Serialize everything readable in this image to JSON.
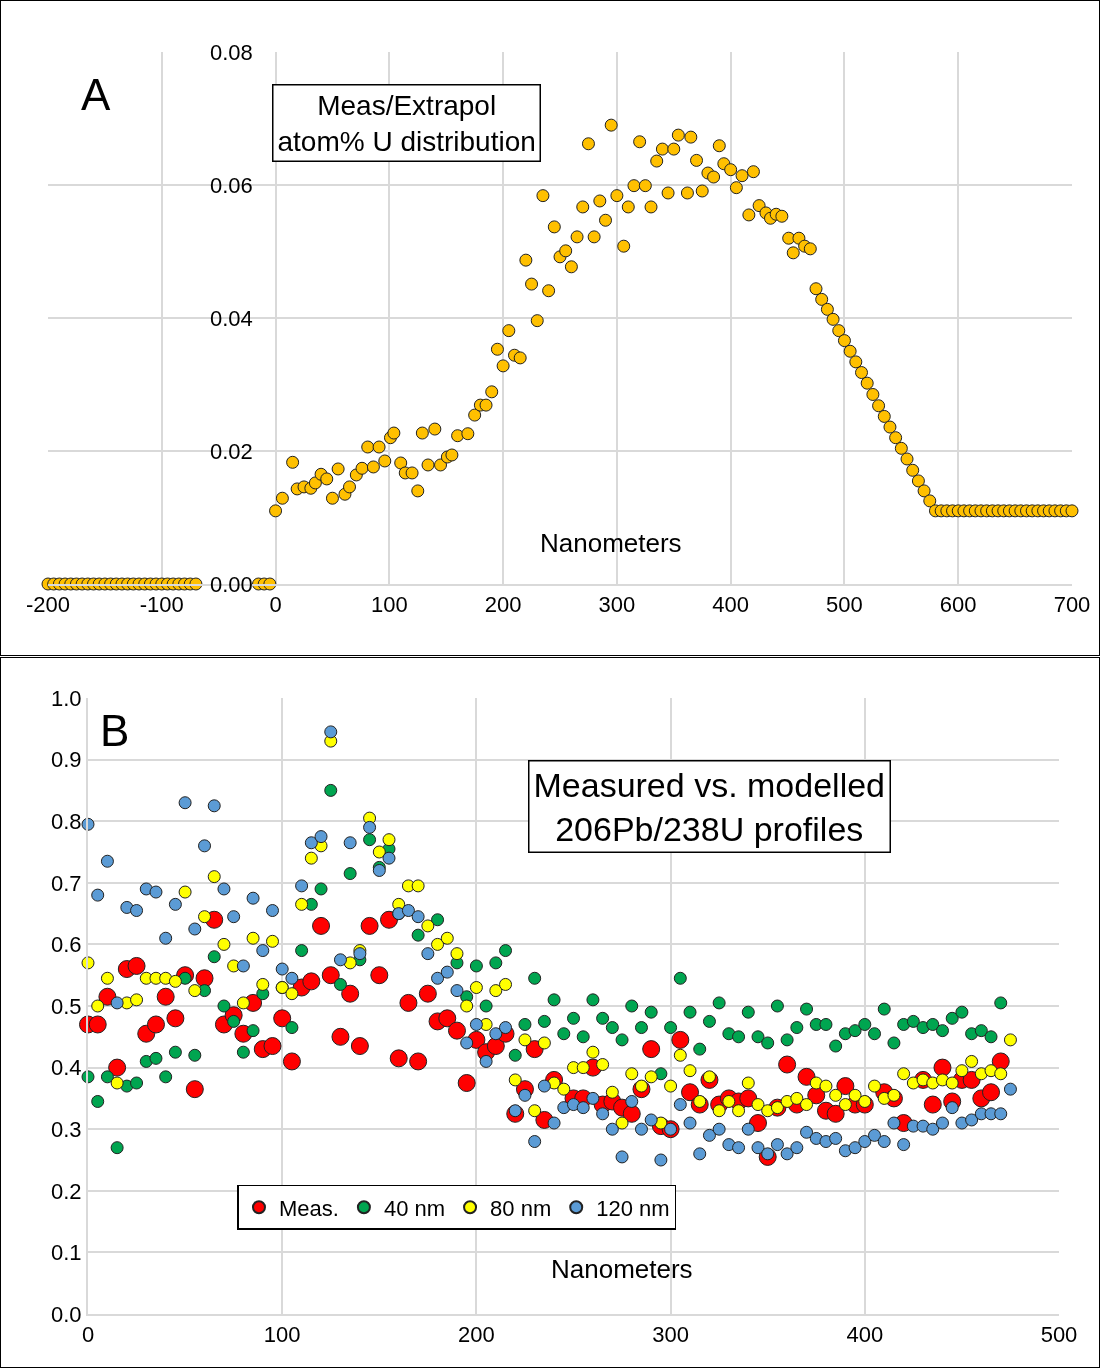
{
  "chart_data": [
    {
      "type": "scatter",
      "title": "Meas/Extrapol\natom% U distribution",
      "xlabel": "Nanometers",
      "annotations": [
        "A"
      ],
      "color": "#ffc000",
      "marker": "circle",
      "grid": true,
      "xlim": [
        -200,
        700
      ],
      "xticks": [
        -200,
        -100,
        0,
        100,
        200,
        300,
        400,
        500,
        600,
        700
      ],
      "ylim": [
        0,
        0.08
      ],
      "yticks": [
        {
          "value": 0,
          "label": "0.00"
        },
        {
          "value": 0.02,
          "label": "0.02"
        },
        {
          "value": 0.04,
          "label": "0.04"
        },
        {
          "value": 0.06,
          "label": "0.06"
        },
        {
          "value": 0.08,
          "label": "0.08"
        }
      ],
      "x": [
        -200,
        -195,
        -190,
        -185,
        -180,
        -175,
        -170,
        -165,
        -160,
        -155,
        -150,
        -145,
        -140,
        -135,
        -130,
        -125,
        -120,
        -115,
        -110,
        -105,
        -100,
        -95,
        -90,
        -85,
        -80,
        -75,
        -70,
        -15,
        -10,
        -5,
        0,
        6,
        15,
        19,
        25,
        31,
        35,
        40,
        45,
        50,
        55,
        61,
        65,
        71,
        76,
        81,
        86,
        91,
        96,
        101,
        104,
        110,
        114,
        120,
        125,
        129,
        134,
        140,
        145,
        151,
        155,
        160,
        169,
        175,
        180,
        185,
        190,
        195,
        200,
        205,
        210,
        215,
        220,
        225,
        230,
        235,
        240,
        245,
        250,
        255,
        260,
        265,
        270,
        275,
        280,
        285,
        290,
        295,
        300,
        306,
        310,
        315,
        320,
        325,
        330,
        335,
        340,
        345,
        350,
        354,
        362,
        365,
        370,
        375,
        380,
        385,
        390,
        394,
        400,
        405,
        410,
        416,
        420,
        425,
        431,
        435,
        440,
        445,
        451,
        455,
        460,
        465,
        470,
        475,
        480,
        485,
        490,
        495,
        500,
        505,
        510,
        515,
        520,
        525,
        530,
        535,
        540,
        545,
        550,
        555,
        560,
        565,
        570,
        575,
        580,
        585,
        590,
        595,
        600,
        605,
        610,
        615,
        620,
        625,
        630,
        635,
        640,
        645,
        650,
        655,
        660,
        665,
        670,
        675,
        680,
        685,
        690,
        695,
        700
      ],
      "values": [
        0,
        0,
        0,
        0,
        0,
        0,
        0,
        0,
        0,
        0,
        0,
        0,
        0,
        0,
        0,
        0,
        0,
        0,
        0,
        0,
        0,
        0,
        0,
        0,
        0,
        0,
        0,
        0,
        0,
        0,
        0.011,
        0.0129,
        0.0183,
        0.0143,
        0.0146,
        0.0144,
        0.0152,
        0.0165,
        0.0158,
        0.0129,
        0.0173,
        0.0135,
        0.0146,
        0.0164,
        0.0174,
        0.0206,
        0.0176,
        0.0206,
        0.0185,
        0.022,
        0.0227,
        0.0182,
        0.0167,
        0.0167,
        0.014,
        0.0227,
        0.0179,
        0.0233,
        0.0179,
        0.0191,
        0.0194,
        0.0223,
        0.0226,
        0.0254,
        0.0269,
        0.0269,
        0.0289,
        0.0353,
        0.0328,
        0.0381,
        0.0344,
        0.034,
        0.0487,
        0.0451,
        0.0396,
        0.0584,
        0.0441,
        0.0537,
        0.0492,
        0.0501,
        0.0477,
        0.0522,
        0.0567,
        0.0662,
        0.0522,
        0.0576,
        0.0547,
        0.069,
        0.0584,
        0.0508,
        0.0567,
        0.0599,
        0.0665,
        0.0599,
        0.0567,
        0.0636,
        0.0654,
        0.0588,
        0.0654,
        0.0675,
        0.0588,
        0.0672,
        0.0637,
        0.0591,
        0.0618,
        0.0612,
        0.0659,
        0.0632,
        0.0623,
        0.0596,
        0.0614,
        0.0555,
        0.062,
        0.0569,
        0.0558,
        0.055,
        0.0556,
        0.0553,
        0.052,
        0.0498,
        0.052,
        0.0508,
        0.0504,
        0.0444,
        0.0428,
        0.0413,
        0.0398,
        0.0381,
        0.0366,
        0.035,
        0.0334,
        0.0318,
        0.0302,
        0.0285,
        0.0268,
        0.0252,
        0.0236,
        0.022,
        0.0204,
        0.0188,
        0.0171,
        0.0155,
        0.014,
        0.0125,
        0.011,
        0.011,
        0.011,
        0.011,
        0.011,
        0.011,
        0.011,
        0.011,
        0.011,
        0.011,
        0.011,
        0.011,
        0.011,
        0.011,
        0.011,
        0.011,
        0.011,
        0.011,
        0.011,
        0.011,
        0.011,
        0.011,
        0.011,
        0.011,
        0.011
      ]
    },
    {
      "type": "scatter",
      "title": "Measured vs. modelled\n206Pb/238U profiles",
      "xlabel": "Nanometers",
      "annotations": [
        "B"
      ],
      "marker": "circle",
      "grid": true,
      "legend": "bottom",
      "xlim": [
        0,
        500
      ],
      "xticks": [
        0,
        100,
        200,
        300,
        400,
        500
      ],
      "ylim": [
        0,
        1
      ],
      "yticks": [
        {
          "value": 0,
          "label": "0.0"
        },
        {
          "value": 0.1,
          "label": "0.1"
        },
        {
          "value": 0.2,
          "label": "0.2"
        },
        {
          "value": 0.3,
          "label": "0.3"
        },
        {
          "value": 0.4,
          "label": "0.4"
        },
        {
          "value": 0.5,
          "label": "0.5"
        },
        {
          "value": 0.6,
          "label": "0.6"
        },
        {
          "value": 0.7,
          "label": "0.7"
        },
        {
          "value": 0.8,
          "label": "0.8"
        },
        {
          "value": 0.9,
          "label": "0.9"
        },
        {
          "value": 1,
          "label": "1.0"
        }
      ],
      "series": [
        {
          "name": "Meas.",
          "color": "#ff0000",
          "x": [
            0,
            5,
            10,
            15,
            20,
            25,
            30,
            35,
            40,
            45,
            50,
            55,
            60,
            65,
            70,
            75,
            80,
            85,
            90,
            95,
            100,
            105,
            110,
            115,
            120,
            125,
            130,
            135,
            140,
            145,
            150,
            155,
            160,
            165,
            170,
            175,
            180,
            185,
            190,
            195,
            200,
            205,
            210,
            215,
            220,
            225,
            230,
            235,
            240,
            245,
            250,
            255,
            260,
            265,
            270,
            275,
            280,
            285,
            290,
            295,
            300,
            305,
            310,
            315,
            320,
            325,
            330,
            335,
            340,
            345,
            350,
            355,
            360,
            365,
            370,
            375,
            380,
            385,
            390,
            395,
            400,
            405,
            410,
            415,
            420,
            425,
            430,
            435,
            440,
            445,
            450,
            455,
            460,
            465,
            470
          ],
          "values": [
            0.47,
            0.47,
            0.515,
            0.4,
            0.56,
            0.565,
            0.455,
            0.47,
            0.515,
            0.48,
            0.55,
            0.365,
            0.545,
            0.64,
            0.47,
            0.485,
            0.455,
            0.505,
            0.43,
            0.435,
            0.48,
            0.41,
            0.53,
            0.54,
            0.63,
            0.55,
            0.45,
            0.52,
            0.435,
            0.63,
            0.55,
            0.64,
            0.415,
            0.505,
            0.41,
            0.52,
            0.475,
            0.48,
            0.46,
            0.375,
            0.445,
            0.425,
            0.435,
            0.455,
            0.325,
            0.365,
            0.43,
            0.315,
            0.38,
            null,
            0.35,
            0.35,
            0.4,
            0.34,
            0.345,
            0.335,
            0.325,
            0.365,
            0.43,
            0.305,
            0.3,
            0.445,
            0.36,
            0.34,
            0.38,
            0.34,
            0.35,
            0.345,
            0.35,
            0.31,
            0.255,
            0.335,
            0.405,
            0.34,
            0.385,
            0.355,
            0.33,
            0.325,
            0.37,
            0.34,
            0.34,
            null,
            0.36,
            0.35,
            0.31,
            null,
            0.38,
            0.34,
            0.4,
            0.345,
            0.38,
            0.38,
            0.35,
            0.36,
            0.41
          ]
        },
        {
          "name": "40 nm",
          "color": "#00a550",
          "x": [
            0,
            5,
            10,
            15,
            20,
            25,
            30,
            35,
            40,
            45,
            50,
            55,
            60,
            65,
            70,
            75,
            80,
            85,
            90,
            100,
            105,
            110,
            115,
            120,
            125,
            130,
            135,
            140,
            145,
            150,
            155,
            160,
            170,
            180,
            185,
            190,
            195,
            200,
            205,
            210,
            215,
            220,
            225,
            230,
            235,
            240,
            245,
            250,
            255,
            260,
            265,
            270,
            275,
            280,
            285,
            290,
            295,
            300,
            305,
            310,
            315,
            320,
            325,
            330,
            335,
            340,
            345,
            350,
            355,
            360,
            365,
            370,
            375,
            380,
            385,
            390,
            395,
            400,
            405,
            410,
            415,
            420,
            425,
            430,
            435,
            440,
            445,
            450,
            455,
            460,
            465,
            470
          ],
          "values": [
            0.385,
            0.345,
            0.385,
            0.27,
            0.37,
            0.375,
            0.41,
            0.415,
            0.385,
            0.425,
            0.545,
            0.42,
            0.525,
            0.58,
            0.5,
            0.475,
            0.425,
            0.46,
            0.52,
            0.53,
            0.465,
            0.59,
            0.665,
            0.69,
            0.85,
            0.535,
            0.715,
            0.575,
            0.77,
            0.725,
            0.755,
            0.65,
            0.615,
            0.64,
            null,
            0.57,
            0.515,
            0.565,
            0.5,
            0.57,
            0.59,
            0.42,
            0.47,
            0.545,
            0.475,
            0.51,
            0.455,
            0.48,
            0.45,
            0.51,
            0.48,
            0.465,
            0.445,
            0.5,
            0.465,
            0.49,
            0.39,
            0.465,
            0.545,
            0.49,
            0.43,
            0.475,
            0.505,
            0.455,
            0.45,
            0.49,
            0.45,
            0.44,
            0.5,
            0.445,
            0.465,
            0.495,
            0.47,
            0.47,
            0.435,
            0.455,
            0.46,
            0.47,
            0.455,
            0.495,
            0.44,
            0.47,
            0.475,
            0.465,
            0.47,
            0.46,
            0.48,
            0.49,
            0.455,
            0.46,
            0.45,
            0.505
          ]
        },
        {
          "name": "80 nm",
          "color": "#ffff00",
          "x": [
            0,
            5,
            10,
            15,
            20,
            25,
            30,
            35,
            40,
            45,
            50,
            55,
            60,
            65,
            70,
            75,
            80,
            85,
            90,
            95,
            100,
            105,
            110,
            115,
            120,
            125,
            135,
            140,
            145,
            150,
            155,
            160,
            165,
            170,
            175,
            180,
            185,
            190,
            195,
            200,
            205,
            210,
            215,
            220,
            225,
            230,
            235,
            240,
            245,
            250,
            255,
            260,
            265,
            270,
            275,
            280,
            285,
            290,
            295,
            300,
            305,
            310,
            315,
            320,
            325,
            330,
            335,
            340,
            345,
            350,
            355,
            360,
            365,
            370,
            375,
            380,
            385,
            390,
            395,
            400,
            405,
            410,
            415,
            420,
            425,
            430,
            435,
            440,
            445,
            450,
            455,
            460,
            465,
            470,
            475
          ],
          "values": [
            0.57,
            0.5,
            0.545,
            0.375,
            0.505,
            0.51,
            0.545,
            0.545,
            0.545,
            0.54,
            0.685,
            0.525,
            0.645,
            0.71,
            0.6,
            0.565,
            0.505,
            0.61,
            0.535,
            0.605,
            0.53,
            0.52,
            0.665,
            0.74,
            0.76,
            0.93,
            0.57,
            0.59,
            0.805,
            0.75,
            0.77,
            0.665,
            0.695,
            0.695,
            0.63,
            0.6,
            0.61,
            0.585,
            0.5,
            0.53,
            0.47,
            0.525,
            0.535,
            0.38,
            0.445,
            0.33,
            0.44,
            0.375,
            0.365,
            0.4,
            0.4,
            0.425,
            0.405,
            0.36,
            0.31,
            0.39,
            0.37,
            0.385,
            0.31,
            0.37,
            0.42,
            0.395,
            0.345,
            0.385,
            0.33,
            0.345,
            0.33,
            0.375,
            0.34,
            0.33,
            0.335,
            0.345,
            0.35,
            0.34,
            0.375,
            0.37,
            0.355,
            0.34,
            0.355,
            0.345,
            0.37,
            0.35,
            0.355,
            0.39,
            0.375,
            0.38,
            0.375,
            0.38,
            0.375,
            0.395,
            0.41,
            0.39,
            0.395,
            0.39,
            0.445
          ]
        },
        {
          "name": "120 nm",
          "color": "#5b9bd5",
          "x": [
            0,
            5,
            10,
            15,
            20,
            25,
            30,
            35,
            40,
            45,
            50,
            55,
            60,
            65,
            70,
            75,
            80,
            85,
            90,
            95,
            100,
            105,
            110,
            115,
            120,
            125,
            130,
            135,
            140,
            145,
            150,
            155,
            160,
            165,
            170,
            175,
            180,
            185,
            190,
            195,
            200,
            205,
            210,
            215,
            220,
            225,
            230,
            235,
            240,
            245,
            250,
            255,
            260,
            265,
            270,
            275,
            280,
            285,
            290,
            295,
            300,
            305,
            310,
            315,
            320,
            325,
            330,
            335,
            340,
            345,
            350,
            355,
            360,
            365,
            370,
            375,
            380,
            385,
            390,
            395,
            400,
            405,
            410,
            415,
            420,
            425,
            430,
            435,
            440,
            445,
            450,
            455,
            460,
            465,
            470,
            475
          ],
          "values": [
            0.795,
            0.68,
            0.735,
            0.505,
            0.66,
            0.655,
            0.69,
            0.685,
            0.61,
            0.665,
            0.83,
            0.625,
            0.76,
            0.825,
            0.69,
            0.645,
            0.565,
            0.675,
            0.59,
            0.655,
            0.56,
            0.545,
            0.695,
            0.765,
            0.775,
            0.945,
            0.575,
            0.765,
            0.585,
            0.79,
            0.72,
            0.74,
            0.65,
            0.655,
            0.645,
            0.585,
            0.545,
            0.555,
            0.525,
            0.44,
            0.47,
            0.41,
            0.455,
            0.465,
            0.33,
            0.355,
            0.28,
            0.37,
            0.31,
            0.335,
            0.34,
            0.335,
            0.35,
            0.325,
            0.3,
            0.255,
            0.345,
            0.3,
            0.315,
            0.25,
            0.3,
            0.34,
            0.31,
            0.26,
            0.29,
            0.3,
            0.275,
            0.27,
            0.3,
            0.27,
            0.26,
            0.275,
            0.26,
            0.27,
            0.295,
            0.285,
            0.28,
            0.285,
            0.265,
            0.27,
            0.28,
            0.29,
            0.28,
            0.31,
            0.275,
            0.305,
            0.305,
            0.3,
            0.31,
            0.335,
            0.31,
            0.315,
            0.325,
            0.325,
            0.325,
            0.365
          ]
        }
      ]
    }
  ]
}
